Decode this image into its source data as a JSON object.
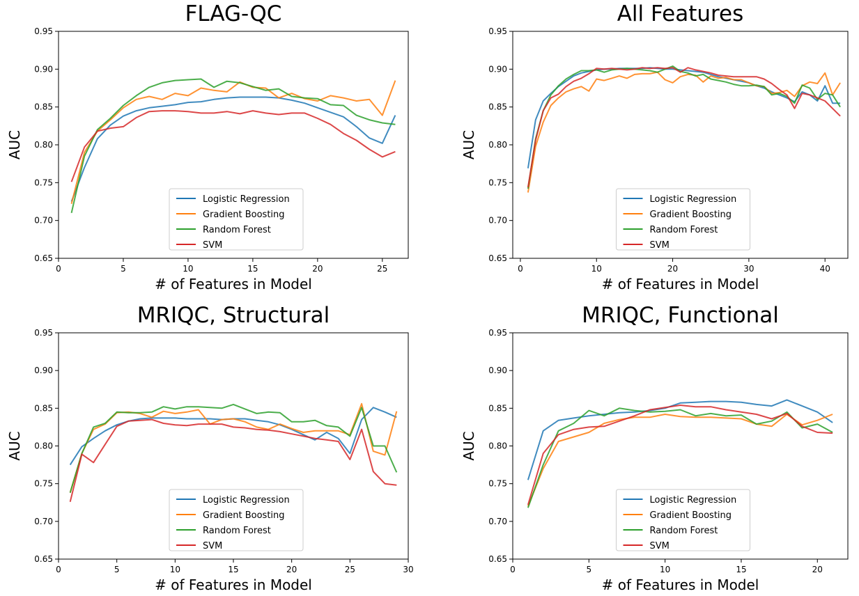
{
  "chart_data": [
    {
      "type": "line",
      "title": "FLAG-QC",
      "xlabel": "# of Features in Model",
      "ylabel": "AUC",
      "xlim": [
        0,
        27
      ],
      "ylim": [
        0.65,
        0.95
      ],
      "xticks": [
        0,
        5,
        10,
        15,
        20,
        25
      ],
      "yticks": [
        "0.65",
        "0.70",
        "0.75",
        "0.80",
        "0.85",
        "0.90",
        "0.95"
      ],
      "legend_position": "lower-center",
      "x": [
        1,
        2,
        3,
        4,
        5,
        6,
        7,
        8,
        9,
        10,
        11,
        12,
        13,
        14,
        15,
        16,
        17,
        18,
        19,
        20,
        21,
        22,
        23,
        24,
        25,
        26
      ],
      "series": [
        {
          "name": "Logistic Regression",
          "color": "#1f77b4",
          "values": [
            0.725,
            0.77,
            0.808,
            0.826,
            0.838,
            0.845,
            0.849,
            0.851,
            0.853,
            0.856,
            0.857,
            0.86,
            0.862,
            0.863,
            0.863,
            0.863,
            0.862,
            0.859,
            0.855,
            0.849,
            0.843,
            0.837,
            0.824,
            0.809,
            0.802,
            0.839
          ]
        },
        {
          "name": "Gradient Boosting",
          "color": "#ff7f0e",
          "values": [
            0.722,
            0.79,
            0.818,
            0.833,
            0.849,
            0.86,
            0.864,
            0.86,
            0.868,
            0.865,
            0.875,
            0.872,
            0.87,
            0.883,
            0.876,
            0.875,
            0.862,
            0.868,
            0.861,
            0.858,
            0.865,
            0.862,
            0.858,
            0.86,
            0.839,
            0.885
          ]
        },
        {
          "name": "Random Forest",
          "color": "#2ca02c",
          "values": [
            0.71,
            0.785,
            0.82,
            0.835,
            0.852,
            0.865,
            0.876,
            0.882,
            0.885,
            0.886,
            0.887,
            0.876,
            0.884,
            0.882,
            0.877,
            0.872,
            0.874,
            0.864,
            0.862,
            0.861,
            0.853,
            0.852,
            0.839,
            0.833,
            0.829,
            0.827
          ]
        },
        {
          "name": "SVM",
          "color": "#d62728",
          "values": [
            0.751,
            0.797,
            0.818,
            0.822,
            0.824,
            0.836,
            0.844,
            0.845,
            0.845,
            0.844,
            0.842,
            0.842,
            0.844,
            0.841,
            0.845,
            0.842,
            0.84,
            0.842,
            0.842,
            0.835,
            0.827,
            0.815,
            0.806,
            0.794,
            0.784,
            0.791
          ]
        }
      ]
    },
    {
      "type": "line",
      "title": "All Features",
      "xlabel": "# of Features in Model",
      "ylabel": "AUC",
      "xlim": [
        -1,
        43
      ],
      "ylim": [
        0.65,
        0.95
      ],
      "xticks": [
        0,
        10,
        20,
        30,
        40
      ],
      "yticks": [
        "0.65",
        "0.70",
        "0.75",
        "0.80",
        "0.85",
        "0.90",
        "0.95"
      ],
      "legend_position": "lower-center",
      "x": [
        1,
        2,
        3,
        4,
        5,
        6,
        7,
        8,
        9,
        10,
        11,
        12,
        13,
        14,
        15,
        16,
        17,
        18,
        19,
        20,
        21,
        22,
        23,
        24,
        25,
        26,
        27,
        28,
        29,
        30,
        31,
        32,
        33,
        34,
        35,
        36,
        37,
        38,
        39,
        40,
        41,
        42
      ],
      "series": [
        {
          "name": "Logistic Regression",
          "color": "#1f77b4",
          "values": [
            0.769,
            0.833,
            0.858,
            0.868,
            0.877,
            0.884,
            0.891,
            0.895,
            0.897,
            0.899,
            0.9,
            0.9,
            0.901,
            0.901,
            0.901,
            0.901,
            0.902,
            0.901,
            0.9,
            0.9,
            0.899,
            0.898,
            0.897,
            0.896,
            0.893,
            0.89,
            0.888,
            0.886,
            0.884,
            0.882,
            0.878,
            0.875,
            0.87,
            0.866,
            0.862,
            0.857,
            0.87,
            0.866,
            0.858,
            0.878,
            0.855,
            0.855
          ]
        },
        {
          "name": "Gradient Boosting",
          "color": "#ff7f0e",
          "values": [
            0.737,
            0.798,
            0.83,
            0.852,
            0.862,
            0.87,
            0.874,
            0.877,
            0.871,
            0.887,
            0.885,
            0.888,
            0.891,
            0.888,
            0.893,
            0.894,
            0.894,
            0.896,
            0.886,
            0.882,
            0.89,
            0.893,
            0.892,
            0.883,
            0.891,
            0.888,
            0.889,
            0.886,
            0.886,
            0.882,
            0.878,
            0.877,
            0.868,
            0.869,
            0.872,
            0.864,
            0.878,
            0.883,
            0.881,
            0.895,
            0.866,
            0.882
          ]
        },
        {
          "name": "Random Forest",
          "color": "#2ca02c",
          "values": [
            0.742,
            0.808,
            0.845,
            0.866,
            0.878,
            0.887,
            0.893,
            0.898,
            0.898,
            0.899,
            0.896,
            0.899,
            0.9,
            0.901,
            0.9,
            0.899,
            0.898,
            0.896,
            0.9,
            0.904,
            0.897,
            0.895,
            0.891,
            0.893,
            0.887,
            0.885,
            0.883,
            0.88,
            0.878,
            0.878,
            0.879,
            0.877,
            0.866,
            0.868,
            0.864,
            0.855,
            0.879,
            0.875,
            0.86,
            0.868,
            0.866,
            0.85
          ]
        },
        {
          "name": "SVM",
          "color": "#d62728",
          "values": [
            0.744,
            0.806,
            0.845,
            0.862,
            0.867,
            0.877,
            0.884,
            0.888,
            0.894,
            0.901,
            0.9,
            0.901,
            0.9,
            0.899,
            0.9,
            0.902,
            0.901,
            0.902,
            0.901,
            0.902,
            0.896,
            0.902,
            0.899,
            0.897,
            0.895,
            0.892,
            0.891,
            0.89,
            0.89,
            0.89,
            0.89,
            0.887,
            0.881,
            0.873,
            0.866,
            0.848,
            0.868,
            0.866,
            0.862,
            0.858,
            0.848,
            0.838
          ]
        }
      ]
    },
    {
      "type": "line",
      "title": "MRIQC, Structural",
      "xlabel": "# of Features in Model",
      "ylabel": "AUC",
      "xlim": [
        0,
        30
      ],
      "ylim": [
        0.65,
        0.95
      ],
      "xticks": [
        0,
        5,
        10,
        15,
        20,
        25,
        30
      ],
      "yticks": [
        "0.65",
        "0.70",
        "0.75",
        "0.80",
        "0.85",
        "0.90",
        "0.95"
      ],
      "legend_position": "lower-center",
      "x": [
        1,
        2,
        3,
        4,
        5,
        6,
        7,
        8,
        9,
        10,
        11,
        12,
        13,
        14,
        15,
        16,
        17,
        18,
        19,
        20,
        21,
        22,
        23,
        24,
        25,
        26,
        27,
        28,
        29
      ],
      "series": [
        {
          "name": "Logistic Regression",
          "color": "#1f77b4",
          "values": [
            0.775,
            0.799,
            0.81,
            0.82,
            0.828,
            0.833,
            0.836,
            0.837,
            0.837,
            0.837,
            0.836,
            0.836,
            0.836,
            0.835,
            0.836,
            0.836,
            0.834,
            0.832,
            0.828,
            0.822,
            0.815,
            0.808,
            0.818,
            0.81,
            0.79,
            0.835,
            0.851,
            0.845,
            0.838
          ]
        },
        {
          "name": "Gradient Boosting",
          "color": "#ff7f0e",
          "values": [
            0.738,
            0.79,
            0.822,
            0.829,
            0.844,
            0.845,
            0.843,
            0.838,
            0.846,
            0.843,
            0.845,
            0.848,
            0.829,
            0.835,
            0.836,
            0.832,
            0.825,
            0.822,
            0.829,
            0.823,
            0.818,
            0.82,
            0.82,
            0.82,
            0.815,
            0.856,
            0.793,
            0.788,
            0.846
          ]
        },
        {
          "name": "Random Forest",
          "color": "#2ca02c",
          "values": [
            0.738,
            0.79,
            0.825,
            0.83,
            0.845,
            0.844,
            0.844,
            0.845,
            0.852,
            0.849,
            0.852,
            0.852,
            0.851,
            0.85,
            0.855,
            0.849,
            0.843,
            0.845,
            0.844,
            0.832,
            0.832,
            0.834,
            0.827,
            0.825,
            0.813,
            0.851,
            0.8,
            0.8,
            0.765
          ]
        },
        {
          "name": "SVM",
          "color": "#d62728",
          "values": [
            0.726,
            0.789,
            0.778,
            0.802,
            0.826,
            0.833,
            0.834,
            0.835,
            0.83,
            0.828,
            0.827,
            0.829,
            0.829,
            0.829,
            0.825,
            0.824,
            0.822,
            0.821,
            0.819,
            0.816,
            0.813,
            0.81,
            0.808,
            0.806,
            0.782,
            0.822,
            0.766,
            0.75,
            0.748
          ]
        }
      ]
    },
    {
      "type": "line",
      "title": "MRIQC, Functional",
      "xlabel": "# of Features in Model",
      "ylabel": "AUC",
      "xlim": [
        0,
        22
      ],
      "ylim": [
        0.65,
        0.95
      ],
      "xticks": [
        0,
        5,
        10,
        15,
        20
      ],
      "yticks": [
        "0.65",
        "0.70",
        "0.75",
        "0.80",
        "0.85",
        "0.90",
        "0.95"
      ],
      "legend_position": "lower-center",
      "x": [
        1,
        2,
        3,
        4,
        5,
        6,
        7,
        8,
        9,
        10,
        11,
        12,
        13,
        14,
        15,
        16,
        17,
        18,
        19,
        20,
        21
      ],
      "series": [
        {
          "name": "Logistic Regression",
          "color": "#1f77b4",
          "values": [
            0.755,
            0.82,
            0.834,
            0.837,
            0.84,
            0.842,
            0.844,
            0.845,
            0.847,
            0.85,
            0.857,
            0.858,
            0.859,
            0.859,
            0.858,
            0.855,
            0.853,
            0.861,
            0.853,
            0.845,
            0.831
          ]
        },
        {
          "name": "Gradient Boosting",
          "color": "#ff7f0e",
          "values": [
            0.72,
            0.77,
            0.806,
            0.812,
            0.818,
            0.83,
            0.835,
            0.838,
            0.838,
            0.842,
            0.839,
            0.838,
            0.838,
            0.837,
            0.836,
            0.829,
            0.826,
            0.842,
            0.828,
            0.834,
            0.842
          ]
        },
        {
          "name": "Random Forest",
          "color": "#2ca02c",
          "values": [
            0.718,
            0.775,
            0.82,
            0.83,
            0.847,
            0.84,
            0.85,
            0.847,
            0.845,
            0.846,
            0.848,
            0.84,
            0.843,
            0.84,
            0.841,
            0.829,
            0.833,
            0.845,
            0.824,
            0.829,
            0.818
          ]
        },
        {
          "name": "SVM",
          "color": "#d62728",
          "values": [
            0.722,
            0.79,
            0.815,
            0.822,
            0.825,
            0.826,
            0.833,
            0.84,
            0.848,
            0.851,
            0.854,
            0.852,
            0.852,
            0.848,
            0.845,
            0.842,
            0.836,
            0.843,
            0.826,
            0.818,
            0.817
          ]
        }
      ]
    }
  ]
}
